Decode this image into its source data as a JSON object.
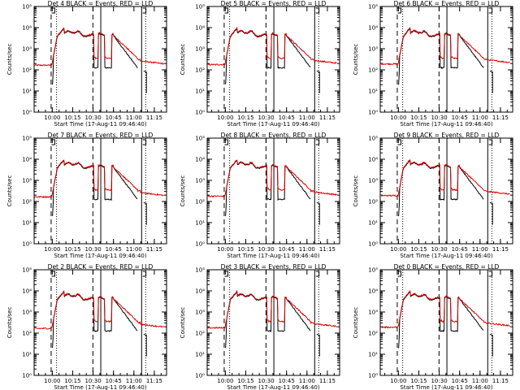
{
  "chart_data": [
    {
      "type": "line",
      "panel": 0,
      "title": "Det 4 BLACK = Events, RED = LLD",
      "xlabel": "Start Time (17-Aug-11 09:46:40)",
      "ylabel": "Counts/sec",
      "xticks": [
        "10:00",
        "10:15",
        "10:30",
        "10:45",
        "11:00",
        "11:15"
      ],
      "yticks": [
        "10⁰",
        "10¹",
        "10²",
        "10³",
        "10⁴",
        "10⁵"
      ],
      "ylog": true,
      "ylim": [
        1,
        100000
      ],
      "xlim": [
        "09:46:40",
        "11:24:00"
      ],
      "series": [
        {
          "name": "BLACK",
          "color": "#000000"
        },
        {
          "name": "RED",
          "color": "#dd0000"
        }
      ]
    },
    {
      "type": "line",
      "panel": 1,
      "title": "Det 5 BLACK = Events, RED = LLD",
      "xlabel": "Start Time (17-Aug-11 09:46:40)",
      "ylabel": "Counts/sec",
      "xticks": [
        "10:00",
        "10:15",
        "10:30",
        "10:45",
        "11:00",
        "11:15"
      ],
      "yticks": [
        "10⁰",
        "10¹",
        "10²",
        "10³",
        "10⁴",
        "10⁵"
      ],
      "ylog": true,
      "ylim": [
        1,
        100000
      ],
      "xlim": [
        "09:46:40",
        "11:24:00"
      ],
      "series": [
        {
          "name": "BLACK",
          "color": "#000000"
        },
        {
          "name": "RED",
          "color": "#dd0000"
        }
      ]
    },
    {
      "type": "line",
      "panel": 2,
      "title": "Det 6 BLACK = Events, RED = LLD",
      "xlabel": "Start Time (17-Aug-11 09:46:40)",
      "ylabel": "Counts/sec",
      "xticks": [
        "10:00",
        "10:15",
        "10:30",
        "10:45",
        "11:00",
        "11:15"
      ],
      "yticks": [
        "10⁰",
        "10¹",
        "10²",
        "10³",
        "10⁴",
        "10⁵"
      ],
      "ylog": true,
      "ylim": [
        1,
        100000
      ],
      "xlim": [
        "09:46:40",
        "11:24:00"
      ],
      "series": [
        {
          "name": "BLACK",
          "color": "#000000"
        },
        {
          "name": "RED",
          "color": "#dd0000"
        }
      ]
    },
    {
      "type": "line",
      "panel": 3,
      "title": "Det 7 BLACK = Events, RED = LLD",
      "xlabel": "Start Time (17-Aug-11 09:46:40)",
      "ylabel": "Counts/sec",
      "xticks": [
        "10:00",
        "10:15",
        "10:30",
        "10:45",
        "11:00",
        "11:15"
      ],
      "yticks": [
        "10⁰",
        "10¹",
        "10²",
        "10³",
        "10⁴",
        "10⁵"
      ],
      "ylog": true,
      "ylim": [
        1,
        100000
      ],
      "xlim": [
        "09:46:40",
        "11:24:00"
      ],
      "series": [
        {
          "name": "BLACK",
          "color": "#000000"
        },
        {
          "name": "RED",
          "color": "#dd0000"
        }
      ]
    },
    {
      "type": "line",
      "panel": 4,
      "title": "Det 8 BLACK = Events, RED = LLD",
      "xlabel": "Start Time (17-Aug-11 09:46:40)",
      "ylabel": "Counts/sec",
      "xticks": [
        "10:00",
        "10:15",
        "10:30",
        "10:45",
        "11:00",
        "11:15"
      ],
      "yticks": [
        "10⁰",
        "10¹",
        "10²",
        "10³",
        "10⁴",
        "10⁵"
      ],
      "ylog": true,
      "ylim": [
        1,
        100000
      ],
      "xlim": [
        "09:46:40",
        "11:24:00"
      ],
      "series": [
        {
          "name": "BLACK",
          "color": "#000000"
        },
        {
          "name": "RED",
          "color": "#dd0000"
        }
      ]
    },
    {
      "type": "line",
      "panel": 5,
      "title": "Det 9 BLACK = Events, RED = LLD",
      "xlabel": "Start Time (17-Aug-11 09:46:40)",
      "ylabel": "Counts/sec",
      "xticks": [
        "10:00",
        "10:15",
        "10:30",
        "10:45",
        "11:00",
        "11:15"
      ],
      "yticks": [
        "10⁰",
        "10¹",
        "10²",
        "10³",
        "10⁴",
        "10⁵"
      ],
      "ylog": true,
      "ylim": [
        1,
        100000
      ],
      "xlim": [
        "09:46:40",
        "11:24:00"
      ],
      "series": [
        {
          "name": "BLACK",
          "color": "#000000"
        },
        {
          "name": "RED",
          "color": "#dd0000"
        }
      ]
    },
    {
      "type": "line",
      "panel": 6,
      "title": "Det 2 BLACK = Events, RED = LLD",
      "xlabel": "Start Time (17-Aug-11 09:46:40)",
      "ylabel": "Counts/sec",
      "xticks": [
        "10:00",
        "10:15",
        "10:30",
        "10:45",
        "11:00",
        "11:15"
      ],
      "yticks": [
        "10⁰",
        "10¹",
        "10²",
        "10³",
        "10⁴",
        "10⁵"
      ],
      "ylog": true,
      "ylim": [
        1,
        100000
      ],
      "xlim": [
        "09:46:40",
        "11:24:00"
      ],
      "series": [
        {
          "name": "BLACK",
          "color": "#000000"
        },
        {
          "name": "RED",
          "color": "#dd0000"
        }
      ]
    },
    {
      "type": "line",
      "panel": 7,
      "title": "Det 3 BLACK = Events, RED = LLD",
      "xlabel": "Start Time (17-Aug-11 09:46:40)",
      "ylabel": "Counts/sec",
      "xticks": [
        "10:00",
        "10:15",
        "10:30",
        "10:45",
        "11:00",
        "11:15"
      ],
      "yticks": [
        "10⁰",
        "10¹",
        "10²",
        "10³",
        "10⁴",
        "10⁵"
      ],
      "ylog": true,
      "ylim": [
        1,
        100000
      ],
      "xlim": [
        "09:46:40",
        "11:24:00"
      ],
      "series": [
        {
          "name": "BLACK",
          "color": "#000000"
        },
        {
          "name": "RED",
          "color": "#dd0000"
        }
      ]
    },
    {
      "type": "line",
      "panel": 8,
      "title": "Det 0 BLACK = Events, RED = LLD",
      "xlabel": "Start Time (17-Aug-11 09:46:40)",
      "ylabel": "Counts/sec",
      "xticks": [
        "10:00",
        "10:15",
        "10:30",
        "10:45",
        "11:00",
        "11:15"
      ],
      "yticks": [
        "10⁰",
        "10¹",
        "10²",
        "10³",
        "10⁴",
        "10⁵"
      ],
      "ylog": true,
      "ylim": [
        1,
        100000
      ],
      "xlim": [
        "09:46:40",
        "11:24:00"
      ],
      "series": [
        {
          "name": "BLACK",
          "color": "#000000"
        },
        {
          "name": "RED",
          "color": "#dd0000"
        }
      ]
    }
  ]
}
